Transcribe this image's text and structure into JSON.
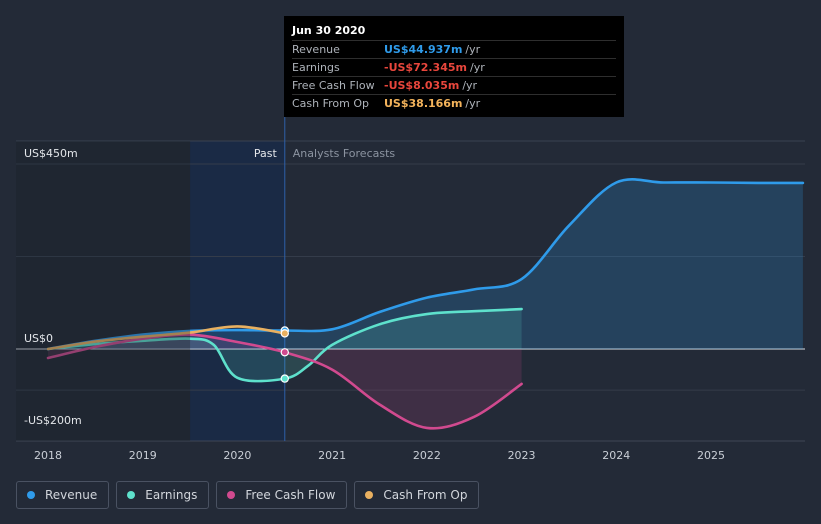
{
  "tooltip": {
    "date": "Jun 30 2020",
    "rows": [
      {
        "label": "Revenue",
        "value": "US$44.937m",
        "unit": "/yr",
        "color": "#2f9bea"
      },
      {
        "label": "Earnings",
        "value": "-US$72.345m",
        "unit": "/yr",
        "color": "#e8463c"
      },
      {
        "label": "Free Cash Flow",
        "value": "-US$8.035m",
        "unit": "/yr",
        "color": "#e8463c"
      },
      {
        "label": "Cash From Op",
        "value": "US$38.166m",
        "unit": "/yr",
        "color": "#f3b35b"
      }
    ]
  },
  "legend": [
    {
      "label": "Revenue",
      "color": "#2f9bea"
    },
    {
      "label": "Earnings",
      "color": "#5ee1cc"
    },
    {
      "label": "Free Cash Flow",
      "color": "#d14a8f"
    },
    {
      "label": "Cash From Op",
      "color": "#e8b060"
    }
  ],
  "chart_data": {
    "type": "line",
    "title": "",
    "xlabel": "",
    "ylabel": "",
    "x_ticks": [
      "2018",
      "2019",
      "2020",
      "2021",
      "2022",
      "2023",
      "2024",
      "2025"
    ],
    "y_labels": [
      {
        "value": 450,
        "text": "US$450m"
      },
      {
        "value": 0,
        "text": "US$0"
      },
      {
        "value": -200,
        "text": "-US$200m"
      }
    ],
    "xlim": [
      2017.7,
      2025.97
    ],
    "ylim": [
      -200,
      450
    ],
    "split_labels": {
      "past": "Past",
      "forecast": "Analysts Forecasts"
    },
    "split_x": 2020.5,
    "highlight_start_x": 2019.5,
    "grid": true,
    "series": [
      {
        "name": "Revenue",
        "color": "#2f9bea",
        "x": [
          2018.0,
          2018.5,
          2019.0,
          2019.5,
          2020.0,
          2020.5,
          2021.0,
          2021.5,
          2022.0,
          2022.5,
          2023.0,
          2023.5,
          2024.0,
          2024.5,
          2025.0,
          2025.5,
          2025.97
        ],
        "y": [
          0,
          20,
          35,
          44,
          46,
          45,
          48,
          90,
          125,
          145,
          170,
          300,
          405,
          405,
          405,
          404,
          404
        ]
      },
      {
        "name": "Earnings",
        "color": "#5ee1cc",
        "x": [
          2018.0,
          2018.5,
          2019.0,
          2019.5,
          2019.75,
          2020.0,
          2020.5,
          2020.75,
          2021.0,
          2021.5,
          2022.0,
          2022.5,
          2023.0
        ],
        "y": [
          0,
          12,
          20,
          25,
          10,
          -70,
          -72,
          -40,
          10,
          60,
          85,
          92,
          97
        ]
      },
      {
        "name": "Free Cash Flow",
        "color": "#d14a8f",
        "x": [
          2018.0,
          2018.5,
          2019.0,
          2019.5,
          2020.0,
          2020.5,
          2021.0,
          2021.5,
          2022.0,
          2022.5,
          2023.0
        ],
        "y": [
          -22,
          5,
          25,
          35,
          17,
          -8,
          -50,
          -135,
          -192,
          -165,
          -85
        ]
      },
      {
        "name": "Cash From Op",
        "color": "#e8b060",
        "x": [
          2018.0,
          2018.5,
          2019.0,
          2019.5,
          2020.0,
          2020.5
        ],
        "y": [
          0,
          18,
          30,
          40,
          55,
          38
        ]
      }
    ]
  }
}
